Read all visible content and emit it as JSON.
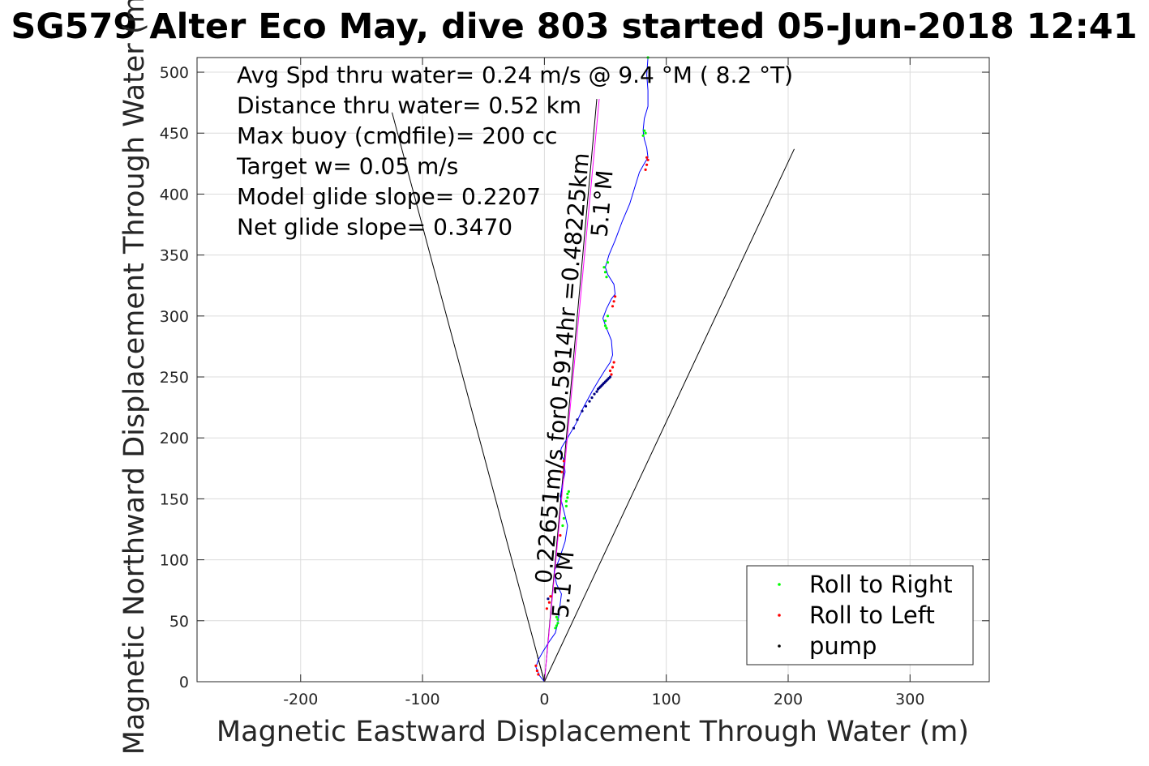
{
  "chart_data": {
    "type": "scatter",
    "title": "SG579 Alter Eco May, dive 803 started 05-Jun-2018 12:41",
    "xlabel": "Magnetic Eastward Displacement Through Water (m)",
    "ylabel": "Magnetic Northward Displacement Through Water (m)",
    "xlim": [
      -285,
      365
    ],
    "ylim": [
      0,
      512
    ],
    "xticks": [
      -200,
      -100,
      0,
      100,
      200,
      300
    ],
    "xtick_labels": [
      "-200",
      "-100",
      "0",
      "100",
      "200",
      "300"
    ],
    "yticks": [
      0,
      50,
      100,
      150,
      200,
      250,
      300,
      350,
      400,
      450,
      500
    ],
    "ytick_labels": [
      "0",
      "50",
      "100",
      "150",
      "200",
      "250",
      "300",
      "350",
      "400",
      "450",
      "500"
    ],
    "grid": true,
    "annotations": [
      "Avg Spd thru water=  0.24 m/s @   9.4 °M (  8.2 °T)",
      "Distance thru water=  0.52 km",
      "Max buoy (cmdfile)= 200 cc",
      "Target w= 0.05 m/s",
      "Model glide slope= 0.2207",
      "Net glide slope= 0.3470"
    ],
    "rotated_label_main": "0.22651m/s for0.5914hr =0.48225km",
    "rotated_label_heading_top": "5.1°M",
    "rotated_label_heading_bottom": "5.1°M",
    "series": [
      {
        "name": "track",
        "color": "#0000ff",
        "x": [
          0,
          -4,
          -7,
          -5,
          -1,
          4,
          9,
          11,
          12,
          13,
          14,
          10,
          8,
          12,
          17,
          19,
          16,
          13,
          15,
          17,
          16,
          13,
          14,
          19,
          26,
          32,
          39,
          45,
          50,
          54,
          56,
          55,
          51,
          48,
          51,
          55,
          58,
          57,
          52,
          50,
          53,
          58,
          64,
          70,
          74,
          78,
          82,
          85,
          84,
          82,
          81,
          82,
          85,
          85,
          84,
          85
        ],
        "y": [
          0,
          5,
          12,
          18,
          25,
          33,
          40,
          48,
          56,
          64,
          72,
          80,
          90,
          100,
          115,
          128,
          140,
          152,
          162,
          172,
          182,
          188,
          192,
          200,
          212,
          225,
          238,
          248,
          256,
          262,
          268,
          280,
          290,
          298,
          306,
          314,
          318,
          326,
          334,
          340,
          350,
          362,
          378,
          392,
          405,
          418,
          425,
          430,
          438,
          445,
          452,
          462,
          472,
          485,
          498,
          512
        ]
      },
      {
        "name": "Roll to Right",
        "color": "#00ff00",
        "x": [
          9,
          10,
          11,
          11,
          10,
          18,
          19,
          19,
          20,
          18,
          16,
          15,
          51,
          50,
          50,
          52,
          50,
          49,
          52,
          51,
          82,
          81,
          83,
          85
        ],
        "y": [
          44,
          46,
          48,
          51,
          53,
          148,
          151,
          154,
          156,
          144,
          134,
          128,
          290,
          292,
          296,
          300,
          336,
          340,
          344,
          332,
          452,
          448,
          450,
          512
        ]
      },
      {
        "name": "Roll to Left",
        "color": "#ff0000",
        "x": [
          -7,
          -6,
          -5,
          2,
          4,
          5,
          14,
          15,
          16,
          56,
          57,
          55,
          54,
          58,
          57,
          56,
          85,
          84,
          83,
          84,
          13
        ],
        "y": [
          13,
          9,
          6,
          60,
          65,
          70,
          172,
          176,
          181,
          258,
          262,
          252,
          255,
          316,
          312,
          308,
          428,
          424,
          420,
          430,
          120
        ]
      },
      {
        "name": "pump",
        "color": "#000080",
        "x": [
          31,
          34,
          37,
          39,
          41,
          43,
          44,
          45,
          46,
          47,
          48,
          49,
          50,
          51,
          52,
          53,
          54,
          24,
          27,
          3
        ],
        "y": [
          222,
          226,
          230,
          233,
          236,
          238,
          240,
          241,
          242,
          243,
          244,
          245,
          246,
          247,
          248,
          249,
          250,
          208,
          215,
          68
        ]
      },
      {
        "name": "heading-line",
        "color": "#ff00ff",
        "x": [
          0,
          45
        ],
        "y": [
          0,
          478
        ]
      },
      {
        "name": "glide-envelope-left",
        "color": "#000000",
        "x": [
          0,
          -125
        ],
        "y": [
          0,
          467
        ]
      },
      {
        "name": "glide-envelope-right",
        "color": "#000000",
        "x": [
          0,
          205
        ],
        "y": [
          0,
          437
        ]
      },
      {
        "name": "net-track-line",
        "color": "#000000",
        "x": [
          0,
          43
        ],
        "y": [
          0,
          478
        ]
      },
      {
        "name": "surface-line",
        "color": "#000000",
        "x": [
          0,
          -6
        ],
        "y": [
          0,
          22
        ]
      }
    ],
    "legend": {
      "placement": "bottom-right",
      "entries": [
        {
          "label": "Roll to Right",
          "color": "#00ff00"
        },
        {
          "label": "Roll to Left",
          "color": "#ff0000"
        },
        {
          "label": "pump",
          "color": "#000000"
        }
      ]
    }
  }
}
